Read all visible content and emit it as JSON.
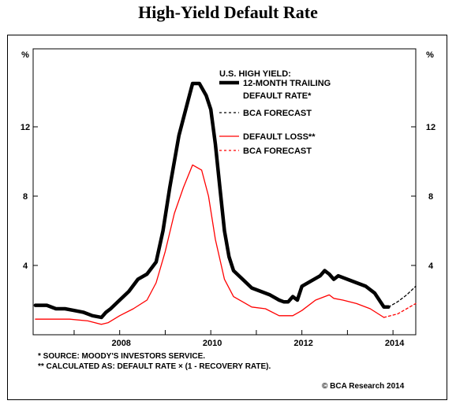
{
  "title": "High-Yield Default Rate",
  "chart_data": {
    "type": "line",
    "unit_label": "%",
    "ylim": [
      0,
      16.5
    ],
    "xlim": [
      2006.1,
      2014.5
    ],
    "x_ticks": [
      2008,
      2010,
      2012,
      2014
    ],
    "y_ticks": [
      4,
      8,
      12
    ],
    "legend": {
      "heading": "U.S. HIGH YIELD:",
      "entries": [
        {
          "key": "default_rate",
          "lines": [
            "12-MONTH TRAILING",
            "DEFAULT RATE*"
          ]
        },
        {
          "key": "default_rate_forecast",
          "lines": [
            "BCA FORECAST"
          ]
        },
        {
          "key": "default_loss",
          "lines": [
            "DEFAULT LOSS**"
          ]
        },
        {
          "key": "default_loss_forecast",
          "lines": [
            "BCA FORECAST"
          ]
        }
      ],
      "placement": "top-right"
    },
    "series": [
      {
        "key": "default_rate",
        "color": "#000000",
        "style": "solid-thick",
        "x": [
          2006.15,
          2006.4,
          2006.6,
          2006.8,
          2007.0,
          2007.2,
          2007.4,
          2007.6,
          2007.7,
          2007.8,
          2008.0,
          2008.2,
          2008.4,
          2008.6,
          2008.8,
          2008.95,
          2009.1,
          2009.3,
          2009.5,
          2009.6,
          2009.75,
          2009.9,
          2010.0,
          2010.1,
          2010.2,
          2010.3,
          2010.4,
          2010.5,
          2010.7,
          2010.9,
          2011.1,
          2011.3,
          2011.5,
          2011.6,
          2011.7,
          2011.8,
          2011.9,
          2012.0,
          2012.2,
          2012.4,
          2012.5,
          2012.6,
          2012.7,
          2012.8,
          2013.0,
          2013.2,
          2013.4,
          2013.6,
          2013.7,
          2013.8,
          2013.9
        ],
        "values": [
          1.7,
          1.7,
          1.5,
          1.5,
          1.4,
          1.3,
          1.1,
          1.0,
          1.3,
          1.5,
          2.0,
          2.5,
          3.2,
          3.5,
          4.2,
          6.0,
          8.5,
          11.5,
          13.5,
          14.5,
          14.5,
          13.8,
          13.0,
          11.0,
          8.5,
          6.0,
          4.5,
          3.7,
          3.2,
          2.7,
          2.5,
          2.3,
          2.0,
          1.9,
          1.9,
          2.2,
          2.0,
          2.8,
          3.1,
          3.4,
          3.7,
          3.5,
          3.2,
          3.4,
          3.2,
          3.0,
          2.8,
          2.4,
          2.0,
          1.6,
          1.6
        ]
      },
      {
        "key": "default_rate_forecast",
        "color": "#000000",
        "style": "dashed",
        "x": [
          2013.9,
          2014.1,
          2014.3,
          2014.5
        ],
        "values": [
          1.6,
          1.9,
          2.3,
          2.8
        ]
      },
      {
        "key": "default_loss",
        "color": "#ff0000",
        "style": "solid",
        "x": [
          2006.15,
          2006.5,
          2006.9,
          2007.3,
          2007.6,
          2007.75,
          2008.0,
          2008.3,
          2008.6,
          2008.8,
          2009.0,
          2009.2,
          2009.4,
          2009.6,
          2009.8,
          2009.95,
          2010.1,
          2010.3,
          2010.5,
          2010.7,
          2010.9,
          2011.2,
          2011.5,
          2011.8,
          2012.0,
          2012.3,
          2012.6,
          2012.7,
          2012.9,
          2013.2,
          2013.5,
          2013.8
        ],
        "values": [
          0.9,
          0.9,
          0.9,
          0.8,
          0.6,
          0.7,
          1.1,
          1.5,
          2.0,
          3.0,
          4.8,
          7.0,
          8.5,
          9.8,
          9.5,
          8.0,
          5.5,
          3.2,
          2.2,
          1.9,
          1.6,
          1.5,
          1.1,
          1.1,
          1.4,
          2.0,
          2.3,
          2.1,
          2.0,
          1.8,
          1.5,
          1.0
        ]
      },
      {
        "key": "default_loss_forecast",
        "color": "#ff0000",
        "style": "dashed",
        "x": [
          2013.8,
          2014.1,
          2014.3,
          2014.5
        ],
        "values": [
          1.0,
          1.2,
          1.5,
          1.8
        ]
      }
    ]
  },
  "footnotes": {
    "source": "*  SOURCE: MOODY'S INVESTORS SERVICE.",
    "calc": "** CALCULATED AS: DEFAULT RATE × (1 - RECOVERY RATE).",
    "copyright": "© BCA Research 2014"
  }
}
